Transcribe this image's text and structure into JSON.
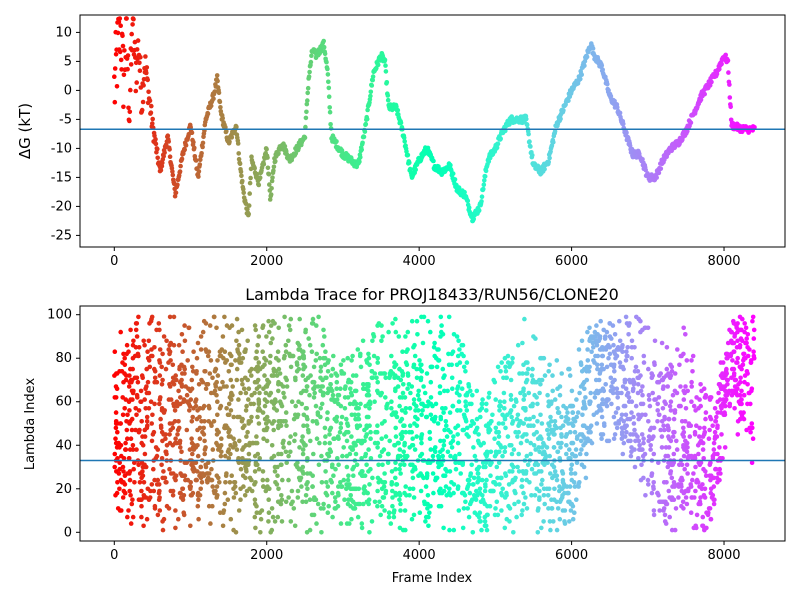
{
  "chart_data": [
    {
      "type": "line",
      "title": "",
      "xlabel": "",
      "ylabel": "ΔG (kT)",
      "xlim": [
        -450,
        8800
      ],
      "ylim": [
        -27,
        13
      ],
      "xticks": [
        0,
        2000,
        4000,
        6000,
        8000
      ],
      "yticks": [
        -25,
        -20,
        -15,
        -10,
        -5,
        0,
        5,
        10
      ],
      "hline": -6.7,
      "hline_color": "#1f77b4",
      "colormap": "rainbow (reversed: red at frame 0, violet at last frame)",
      "x_max": 8400,
      "series": [
        {
          "x": [
            0,
            40,
            80,
            120,
            160,
            200,
            240,
            280,
            320,
            360,
            400,
            500,
            600,
            700,
            800,
            900,
            1000,
            1100,
            1200,
            1300,
            1350,
            1400,
            1500,
            1600,
            1650,
            1700,
            1760,
            1800,
            1900,
            2000,
            2050,
            2100,
            2200,
            2300,
            2400,
            2500,
            2550,
            2600,
            2650,
            2700,
            2750,
            2800,
            2850,
            2900,
            3000,
            3100,
            3200,
            3300,
            3400,
            3500,
            3550,
            3600,
            3700,
            3800,
            3900,
            4000,
            4100,
            4200,
            4300,
            4400,
            4500,
            4600,
            4700,
            4800,
            4900,
            5000,
            5100,
            5200,
            5300,
            5400,
            5500,
            5600,
            5700,
            5800,
            5900,
            6000,
            6100,
            6200,
            6250,
            6300,
            6400,
            6500,
            6600,
            6700,
            6800,
            6900,
            7000,
            7100,
            7200,
            7300,
            7400,
            7500,
            7600,
            7700,
            7800,
            7900,
            8000,
            8050,
            8100,
            8200,
            8300,
            8400
          ],
          "y": [
            0,
            6,
            11,
            2,
            9,
            -4,
            12,
            3,
            8,
            -2,
            5,
            -6,
            -14,
            -8,
            -18,
            -11,
            -6,
            -15,
            -5,
            -1,
            2,
            -4,
            -9,
            -6,
            -13,
            -18,
            -22,
            -12,
            -16,
            -10,
            -19,
            -12,
            -9,
            -12,
            -10,
            -8,
            2,
            7,
            6,
            7,
            8,
            3,
            -8,
            -9,
            -11,
            -12,
            -13,
            -6,
            3,
            6,
            5,
            -3,
            -3,
            -8,
            -15,
            -12,
            -10,
            -13,
            -14,
            -13,
            -17,
            -18,
            -22,
            -20,
            -12,
            -10,
            -7,
            -5,
            -5,
            -5,
            -13,
            -14,
            -12,
            -6,
            -3,
            0,
            2,
            6,
            8,
            6,
            4,
            -1,
            -3,
            -7,
            -11,
            -11,
            -15,
            -15,
            -12,
            -10,
            -9,
            -7,
            -4,
            -1,
            1,
            3,
            6,
            5,
            -6,
            -6.5,
            -6.7,
            -6.7
          ]
        }
      ]
    },
    {
      "type": "scatter",
      "title": "Lambda Trace for PROJ18433/RUN56/CLONE20",
      "xlabel": "Frame Index",
      "ylabel": "Lambda Index",
      "xlim": [
        -450,
        8800
      ],
      "ylim": [
        -4,
        104
      ],
      "xticks": [
        0,
        2000,
        4000,
        6000,
        8000
      ],
      "yticks": [
        0,
        20,
        40,
        60,
        80,
        100
      ],
      "hline": 33,
      "hline_color": "#1f77b4",
      "colormap": "rainbow (reversed: red at frame 0, violet at last frame)",
      "x_max": 8400,
      "series": [
        {
          "x": [
            0,
            300,
            600,
            900,
            1200,
            1500,
            1800,
            2100,
            2400,
            2700,
            3000,
            3300,
            3600,
            3900,
            4200,
            4500,
            4800,
            5100,
            5400,
            5700,
            6000,
            6300,
            6600,
            6900,
            7200,
            7500,
            7800,
            8100,
            8400
          ],
          "y": [
            50,
            50,
            50,
            50,
            50,
            50,
            50,
            45,
            50,
            45,
            40,
            45,
            40,
            55,
            40,
            55,
            25,
            35,
            45,
            35,
            30,
            75,
            70,
            55,
            40,
            45,
            20,
            80,
            65
          ],
          "spread_low": [
            0,
            0,
            0,
            0,
            0,
            0,
            0,
            0,
            0,
            0,
            0,
            0,
            0,
            0,
            0,
            0,
            0,
            0,
            0,
            0,
            0,
            40,
            40,
            20,
            0,
            0,
            0,
            50,
            30
          ],
          "spread_high": [
            100,
            100,
            100,
            100,
            100,
            100,
            100,
            100,
            100,
            100,
            80,
            90,
            100,
            100,
            100,
            100,
            60,
            80,
            100,
            80,
            80,
            100,
            100,
            100,
            90,
            95,
            60,
            100,
            100
          ]
        }
      ]
    }
  ]
}
